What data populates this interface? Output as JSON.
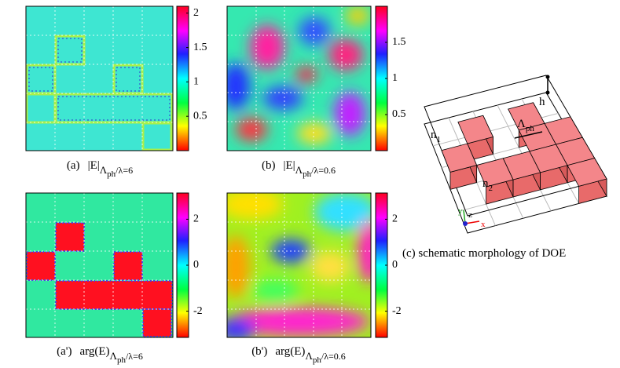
{
  "panels": [
    {
      "caption": {
        "label": "(a)",
        "quantity": "|E|",
        "sub": "Λ",
        "subsub": "ph",
        "tail": "/λ=6"
      },
      "colorbar": {
        "lim": [
          0,
          2.1
        ],
        "ticks": [
          0.5,
          1,
          1.5,
          2
        ]
      }
    },
    {
      "caption": {
        "label": "(b)",
        "quantity": "|E|",
        "sub": "Λ",
        "subsub": "ph",
        "tail": "/λ=0.6"
      },
      "colorbar": {
        "lim": [
          0,
          2
        ],
        "ticks": [
          0.5,
          1,
          1.5
        ]
      }
    },
    {
      "caption": {
        "label": "(a')",
        "quantity": "arg(E)",
        "sub": "Λ",
        "subsub": "ph",
        "tail": "/λ=6"
      },
      "colorbar": {
        "lim": [
          -3.14,
          3.14
        ],
        "ticks": [
          -2,
          0,
          2
        ]
      }
    },
    {
      "caption": {
        "label": "(b')",
        "quantity": "arg(E)",
        "sub": "Λ",
        "subsub": "ph",
        "tail": "/λ=0.6"
      },
      "colorbar": {
        "lim": [
          -3.14,
          3.14
        ],
        "ticks": [
          -2,
          0,
          2
        ]
      }
    }
  ],
  "schematic": {
    "n1": "n",
    "n1_sub": "1",
    "n2": "n",
    "n2_sub": "2",
    "period": "Λ",
    "period_sub": "ph",
    "height": "h",
    "axis_x": "x",
    "axis_y": "y",
    "axis_z": "z",
    "caption": "(c)  schematic morphology of DOE"
  }
}
